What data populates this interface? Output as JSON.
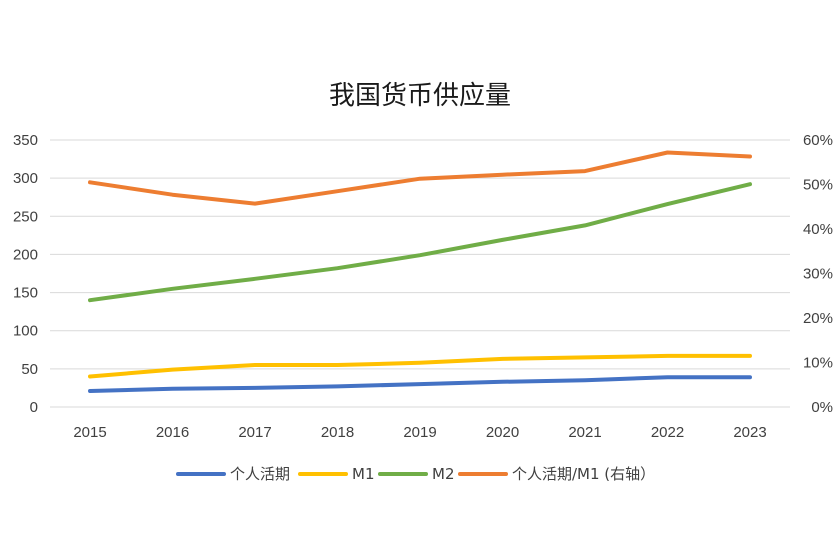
{
  "chart_data": {
    "type": "line",
    "title": "我国货币供应量",
    "categories": [
      "2015",
      "2016",
      "2017",
      "2018",
      "2019",
      "2020",
      "2021",
      "2022",
      "2023"
    ],
    "y_left": {
      "ticks": [
        "0",
        "50",
        "100",
        "150",
        "200",
        "250",
        "300",
        "350"
      ],
      "ylim": [
        0,
        350
      ]
    },
    "y_right": {
      "ticks": [
        "0%",
        "10%",
        "20%",
        "30%",
        "40%",
        "50%",
        "60%"
      ],
      "ylim": [
        0,
        0.6
      ]
    },
    "grid": true,
    "legend_position": "bottom",
    "series": [
      {
        "name": "个人活期",
        "axis": "left",
        "color": "#4472C4",
        "values": [
          21,
          24,
          25,
          27,
          30,
          33,
          35,
          39,
          39
        ]
      },
      {
        "name": "M1",
        "axis": "left",
        "color": "#FFC000",
        "values": [
          40,
          49,
          55,
          55,
          58,
          63,
          65,
          67,
          67
        ]
      },
      {
        "name": "M2",
        "axis": "left",
        "color": "#70AD47",
        "values": [
          140,
          155,
          168,
          182,
          199,
          219,
          238,
          266,
          292
        ]
      },
      {
        "name": "个人活期/M1 (右轴）",
        "axis": "right",
        "color": "#ED7D31",
        "values": [
          0.505,
          0.477,
          0.457,
          0.485,
          0.513,
          0.522,
          0.53,
          0.572,
          0.563
        ]
      }
    ]
  }
}
